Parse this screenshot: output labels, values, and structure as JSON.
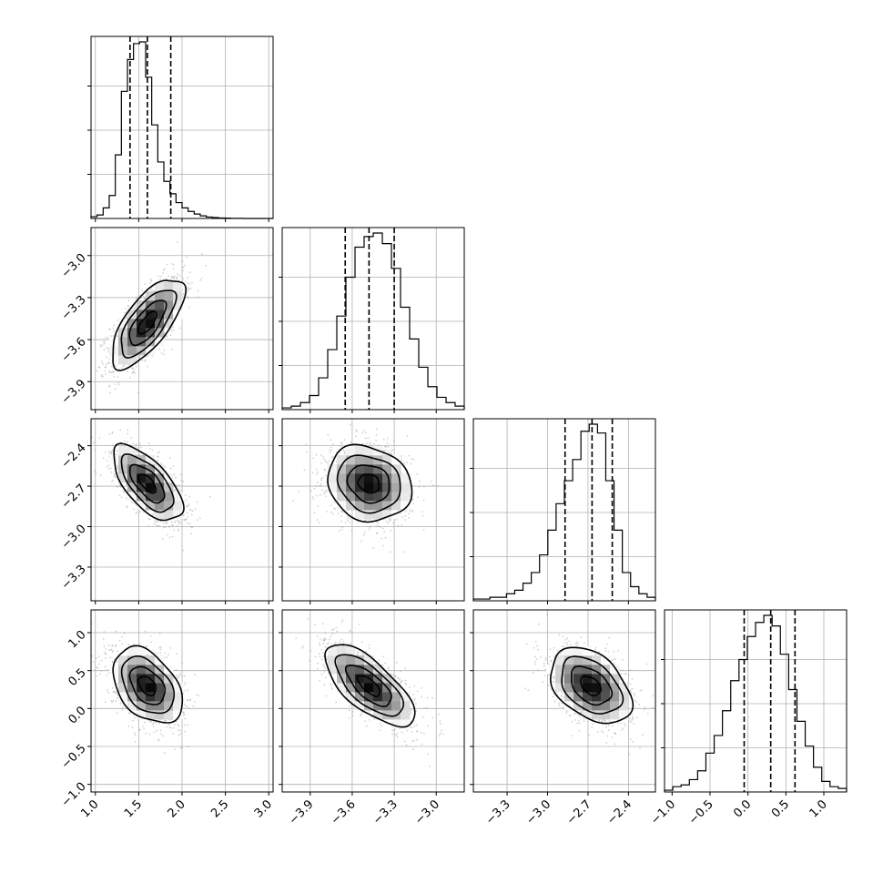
{
  "chart_data": {
    "type": "corner",
    "grid": true,
    "parameters": [
      {
        "xlim": [
          0.95,
          3.05
        ],
        "xticks": [
          1.0,
          1.5,
          2.0,
          2.5,
          3.0
        ],
        "tick_labels": [
          "1.0",
          "1.5",
          "2.0",
          "2.5",
          "3.0"
        ],
        "quantiles": [
          1.4,
          1.6,
          1.87
        ]
      },
      {
        "xlim": [
          -4.1,
          -2.8
        ],
        "xticks": [
          -3.9,
          -3.6,
          -3.3,
          -3.0
        ],
        "tick_labels": [
          "−3.9",
          "−3.6",
          "−3.3",
          "−3.0"
        ],
        "quantiles": [
          -3.65,
          -3.48,
          -3.3
        ]
      },
      {
        "xlim": [
          -3.55,
          -2.2
        ],
        "xticks": [
          -3.3,
          -3.0,
          -2.7,
          -2.4
        ],
        "tick_labels": [
          "−3.3",
          "−3.0",
          "−2.7",
          "−2.4"
        ],
        "quantiles": [
          -2.87,
          -2.67,
          -2.52
        ]
      },
      {
        "xlim": [
          -1.1,
          1.3
        ],
        "xticks": [
          -1.0,
          -0.5,
          0.0,
          0.5,
          1.0
        ],
        "tick_labels": [
          "−1.0",
          "−0.5",
          "0.0",
          "0.5",
          "1.0"
        ],
        "quantiles": [
          -0.05,
          0.3,
          0.62
        ]
      }
    ],
    "y_axes": [
      {
        "row": 1,
        "ylim": [
          -4.1,
          -2.8
        ],
        "yticks": [
          -3.9,
          -3.6,
          -3.3,
          -3.0
        ],
        "tick_labels": [
          "−3.9",
          "−3.6",
          "−3.3",
          "−3.0"
        ]
      },
      {
        "row": 2,
        "ylim": [
          -3.55,
          -2.2
        ],
        "yticks": [
          -3.3,
          -3.0,
          -2.7,
          -2.4
        ],
        "tick_labels": [
          "−3.3",
          "−3.0",
          "−2.7",
          "−2.4"
        ]
      },
      {
        "row": 3,
        "ylim": [
          -1.1,
          1.3
        ],
        "yticks": [
          -1.0,
          -0.5,
          0.0,
          0.5,
          1.0
        ],
        "tick_labels": [
          "−1.0",
          "−0.5",
          "0.0",
          "0.5",
          "1.0"
        ]
      }
    ],
    "histograms": [
      {
        "param": 0,
        "bin_edges": [
          0.95,
          3.05
        ],
        "counts": [
          0.01,
          0.02,
          0.06,
          0.13,
          0.36,
          0.72,
          0.9,
          0.99,
          1.0,
          0.8,
          0.53,
          0.32,
          0.21,
          0.14,
          0.09,
          0.06,
          0.04,
          0.025,
          0.015,
          0.008,
          0.005,
          0.003,
          0.002,
          0.001,
          0.001,
          0,
          0,
          0,
          0,
          0
        ]
      },
      {
        "param": 1,
        "bin_edges": [
          -4.1,
          -2.8
        ],
        "counts": [
          0.01,
          0.02,
          0.04,
          0.08,
          0.18,
          0.34,
          0.53,
          0.75,
          0.92,
          0.98,
          1.0,
          0.94,
          0.8,
          0.58,
          0.4,
          0.24,
          0.13,
          0.07,
          0.04,
          0.02
        ]
      },
      {
        "param": 2,
        "bin_edges": [
          -3.55,
          -2.2
        ],
        "counts": [
          0.01,
          0.01,
          0.02,
          0.02,
          0.04,
          0.06,
          0.1,
          0.16,
          0.26,
          0.4,
          0.55,
          0.68,
          0.8,
          0.96,
          1.0,
          0.95,
          0.68,
          0.4,
          0.16,
          0.08,
          0.04,
          0.02
        ]
      },
      {
        "param": 3,
        "bin_edges": [
          -1.1,
          1.3
        ],
        "counts": [
          0.01,
          0.03,
          0.04,
          0.07,
          0.12,
          0.22,
          0.32,
          0.46,
          0.63,
          0.75,
          0.88,
          0.96,
          1.0,
          0.94,
          0.78,
          0.58,
          0.4,
          0.26,
          0.14,
          0.06,
          0.03,
          0.02
        ]
      }
    ],
    "density_panels": [
      {
        "row": 1,
        "col": 0,
        "mean": [
          1.6,
          -3.48
        ],
        "sd": [
          0.21,
          0.16
        ],
        "corr": 0.7
      },
      {
        "row": 2,
        "col": 0,
        "mean": [
          1.6,
          -2.68
        ],
        "sd": [
          0.2,
          0.14
        ],
        "corr": -0.65
      },
      {
        "row": 2,
        "col": 1,
        "mean": [
          -3.48,
          -2.68
        ],
        "sd": [
          0.15,
          0.14
        ],
        "corr": -0.15
      },
      {
        "row": 3,
        "col": 0,
        "mean": [
          1.6,
          0.3
        ],
        "sd": [
          0.2,
          0.25
        ],
        "corr": -0.4
      },
      {
        "row": 3,
        "col": 1,
        "mean": [
          -3.48,
          0.3
        ],
        "sd": [
          0.16,
          0.27
        ],
        "corr": -0.7
      },
      {
        "row": 3,
        "col": 2,
        "mean": [
          -2.68,
          0.3
        ],
        "sd": [
          0.15,
          0.25
        ],
        "corr": -0.4
      }
    ]
  }
}
